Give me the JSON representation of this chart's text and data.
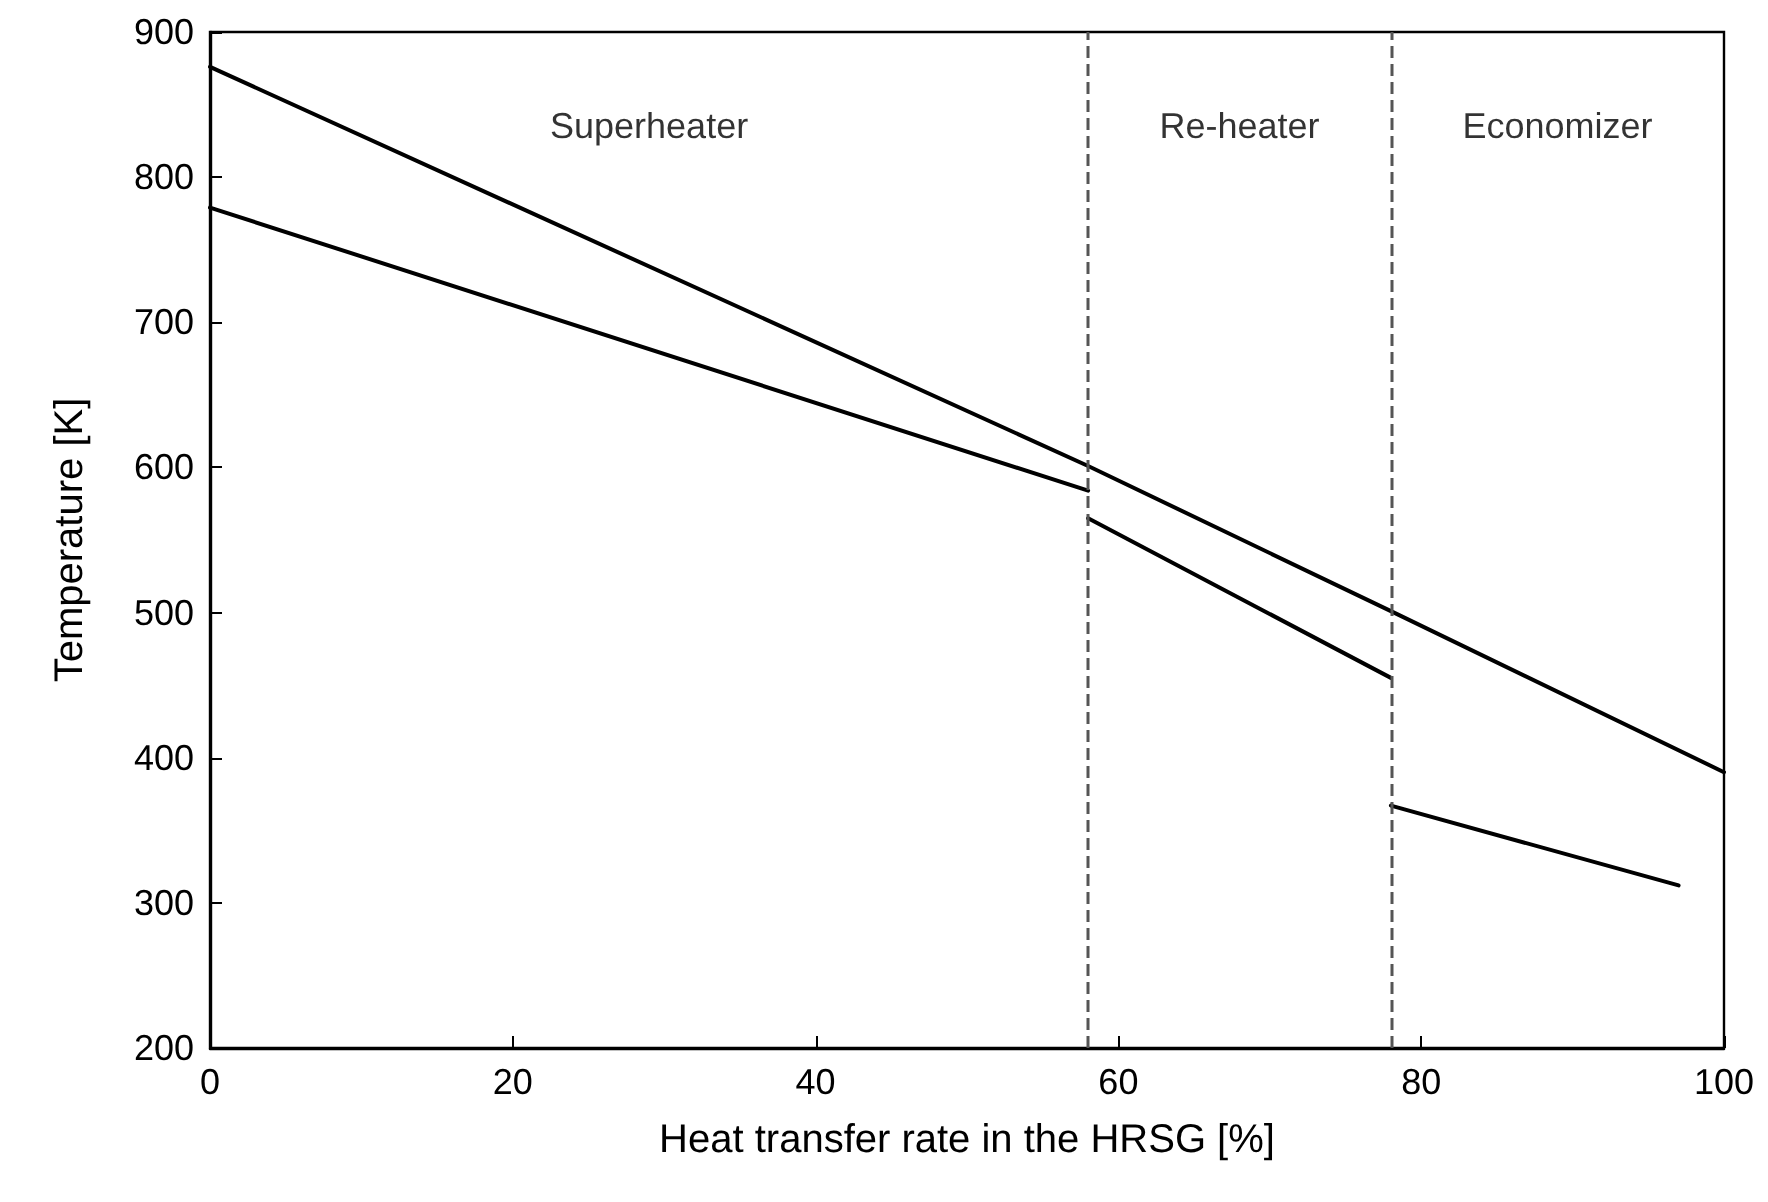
{
  "chart_data": {
    "type": "line",
    "xlabel": "Heat transfer rate in the HRSG [%]",
    "ylabel": "Temperature [K]",
    "series": [
      {
        "color": "#000000",
        "x": [
          0,
          58,
          78,
          100
        ],
        "values": [
          876,
          601,
          501,
          390
        ]
      },
      {
        "color": "#000000",
        "x": [
          0,
          58
        ],
        "values": [
          779,
          584
        ]
      },
      {
        "color": "#000000",
        "x": [
          58,
          78
        ],
        "values": [
          565,
          455
        ]
      },
      {
        "color": "#000000",
        "x": [
          78,
          97
        ],
        "values": [
          367,
          312
        ]
      }
    ],
    "xlim": [
      0,
      100
    ],
    "xticks": [
      0,
      20,
      40,
      60,
      80,
      100
    ],
    "ylim": [
      200,
      900
    ],
    "yticks": [
      200,
      300,
      400,
      500,
      600,
      700,
      800,
      900
    ],
    "grid": false,
    "marker": "none",
    "line_style": "solid",
    "ref_lines": [
      {
        "axis": "x",
        "value": 58,
        "color": "#555555",
        "line_style": "dashed"
      },
      {
        "axis": "x",
        "value": 78,
        "color": "#555555",
        "line_style": "dashed"
      }
    ],
    "annotations": [
      "Superheater",
      "Re-heater",
      "Economizer"
    ]
  }
}
